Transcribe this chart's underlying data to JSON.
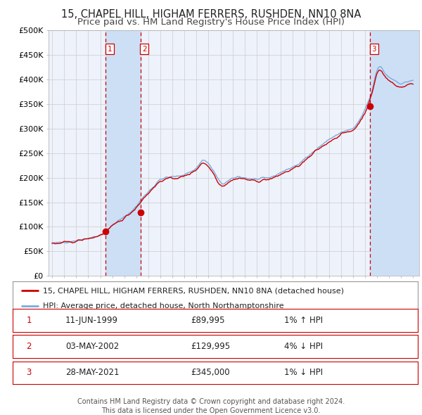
{
  "title": "15, CHAPEL HILL, HIGHAM FERRERS, RUSHDEN, NN10 8NA",
  "subtitle": "Price paid vs. HM Land Registry's House Price Index (HPI)",
  "ylim": [
    0,
    500000
  ],
  "yticks": [
    0,
    50000,
    100000,
    150000,
    200000,
    250000,
    300000,
    350000,
    400000,
    450000,
    500000
  ],
  "ytick_labels": [
    "£0",
    "£50K",
    "£100K",
    "£150K",
    "£200K",
    "£250K",
    "£300K",
    "£350K",
    "£400K",
    "£450K",
    "£500K"
  ],
  "xlim_start": 1994.7,
  "xlim_end": 2025.5,
  "background_color": "#ffffff",
  "plot_bg_color": "#eef2fb",
  "grid_color": "#cccccc",
  "hpi_line_color": "#7aabdc",
  "price_line_color": "#cc0000",
  "shade_color": "#cddff5",
  "marker_color": "#cc0000",
  "vline_color": "#cc0000",
  "transaction1_date": 1999.44,
  "transaction1_price": 89995,
  "transaction1_label": "1",
  "transaction2_date": 2002.33,
  "transaction2_price": 129995,
  "transaction2_label": "2",
  "transaction3_date": 2021.41,
  "transaction3_price": 345000,
  "transaction3_label": "3",
  "legend_line1": "15, CHAPEL HILL, HIGHAM FERRERS, RUSHDEN, NN10 8NA (detached house)",
  "legend_line2": "HPI: Average price, detached house, North Northamptonshire",
  "table_data": [
    [
      "1",
      "11-JUN-1999",
      "£89,995",
      "1% ↑ HPI"
    ],
    [
      "2",
      "03-MAY-2002",
      "£129,995",
      "4% ↓ HPI"
    ],
    [
      "3",
      "28-MAY-2021",
      "£345,000",
      "1% ↓ HPI"
    ]
  ],
  "footer_line1": "Contains HM Land Registry data © Crown copyright and database right 2024.",
  "footer_line2": "This data is licensed under the Open Government Licence v3.0.",
  "title_fontsize": 10.5,
  "subtitle_fontsize": 9.5,
  "tick_fontsize": 8,
  "legend_fontsize": 8,
  "table_fontsize": 8.5,
  "footer_fontsize": 7
}
